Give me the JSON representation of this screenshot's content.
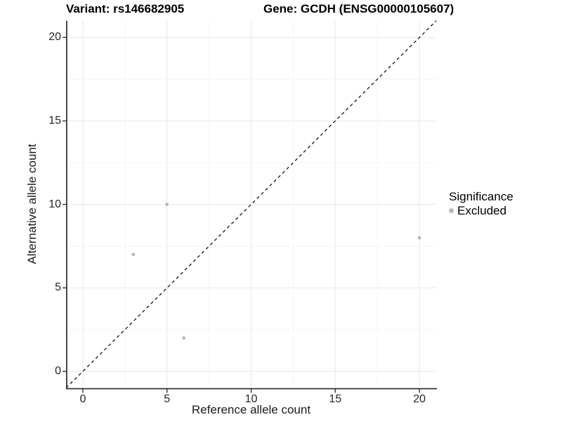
{
  "chart_data": {
    "type": "scatter",
    "title_left": "Variant: rs146682905",
    "title_right": "Gene: GCDH (ENSG00000105607)",
    "xlabel": "Reference allele count",
    "ylabel": "Alternative allele count",
    "xlim": [
      -1,
      21
    ],
    "ylim": [
      -1,
      21
    ],
    "x_ticks": [
      0,
      5,
      10,
      15,
      20
    ],
    "y_ticks": [
      0,
      5,
      10,
      15,
      20
    ],
    "x_minor_ticks": [
      2.5,
      7.5,
      12.5,
      17.5
    ],
    "y_minor_ticks": [
      2.5,
      7.5,
      12.5,
      17.5
    ],
    "grid": "major+minor",
    "series": [
      {
        "name": "Excluded",
        "color": "#b8b8b8",
        "points": [
          [
            3,
            7
          ],
          [
            5,
            10
          ],
          [
            6,
            2
          ],
          [
            20,
            8
          ]
        ]
      }
    ],
    "reference_line": {
      "slope": 1,
      "intercept": 0,
      "style": "dashed",
      "color": "#222222"
    },
    "legend": {
      "title": "Significance",
      "position": "right",
      "items": [
        {
          "label": "Excluded",
          "color": "#b8b8b8"
        }
      ]
    },
    "style_colors": {
      "major_grid": "#e7e7e7",
      "minor_grid": "#f3f3f3",
      "axis_line": "#333333",
      "point": "#b8b8b8"
    }
  }
}
